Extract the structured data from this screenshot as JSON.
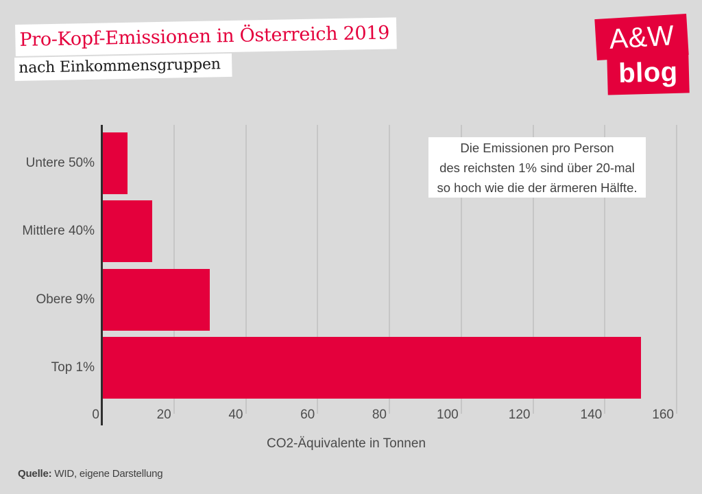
{
  "header": {
    "title": "Pro-Kopf-Emissionen in Österreich 2019",
    "subtitle": "nach Einkommensgruppen"
  },
  "logo": {
    "line1": "A&W",
    "line2": "blog"
  },
  "annotation": {
    "lines": [
      "Die Emissionen pro Person",
      "des reichsten 1% sind über 20-mal",
      "so hoch wie die der ärmeren Hälfte."
    ]
  },
  "source": {
    "label": "Quelle:",
    "text": " WID, eigene Darstellung"
  },
  "colors": {
    "accent_red": "#e4003c",
    "background": "#dadada",
    "gridline": "#c6c6c6",
    "axis": "#2f2f2f",
    "text_gray": "#4a4a4a"
  },
  "chart_data": {
    "type": "bar",
    "orientation": "horizontal",
    "title": "Pro-Kopf-Emissionen in Österreich 2019",
    "subtitle": "nach Einkommensgruppen",
    "categories": [
      "Untere 50%",
      "Mittlere 40%",
      "Obere 9%",
      "Top 1%"
    ],
    "values": [
      7,
      14,
      30,
      150
    ],
    "xlabel": "CO2-Äquivalente in Tonnen",
    "ylabel": "",
    "xlim": [
      0,
      160
    ],
    "xticks": [
      0,
      20,
      40,
      60,
      80,
      100,
      120,
      140,
      160
    ],
    "grid": true,
    "legend": false,
    "bar_color": "#e4003c",
    "annotation": "Die Emissionen pro Person des reichsten 1% sind über 20-mal so hoch wie die der ärmeren Hälfte.",
    "source": "Quelle: WID, eigene Darstellung"
  }
}
